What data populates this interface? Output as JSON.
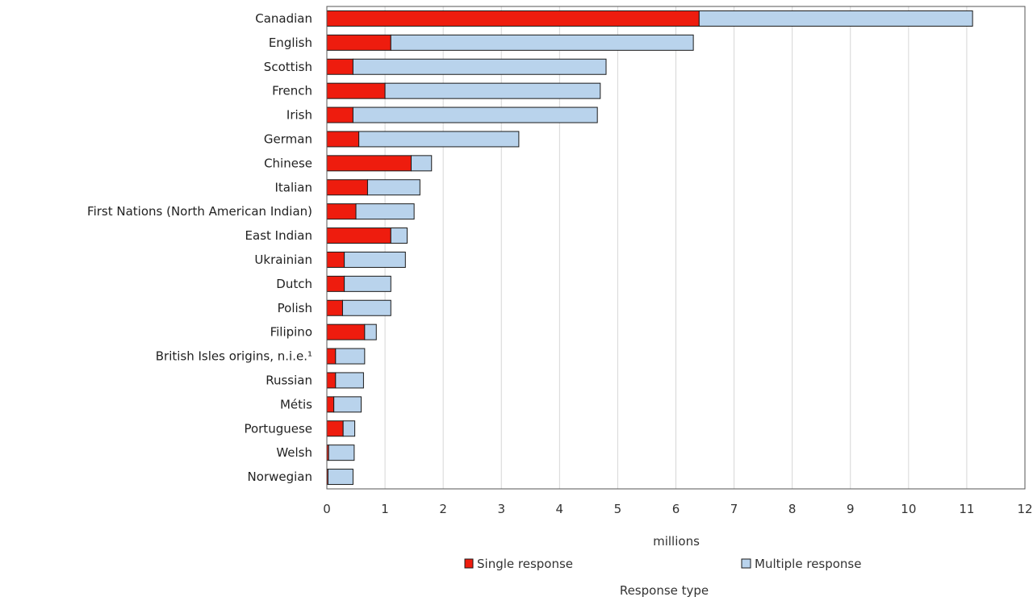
{
  "chart_data": {
    "type": "bar",
    "orientation": "horizontal",
    "stacked": true,
    "categories": [
      "Canadian",
      "English",
      "Scottish",
      "French",
      "Irish",
      "German",
      "Chinese",
      "Italian",
      "First Nations (North American Indian)",
      "East Indian",
      "Ukrainian",
      "Dutch",
      "Polish",
      "Filipino",
      "British Isles origins, n.i.e.¹",
      "Russian",
      "Métis",
      "Portuguese",
      "Welsh",
      "Norwegian"
    ],
    "series": [
      {
        "name": "Single response",
        "color": "#ee1c0e",
        "values": [
          6.4,
          1.1,
          0.45,
          1.0,
          0.45,
          0.55,
          1.45,
          0.7,
          0.5,
          1.1,
          0.3,
          0.3,
          0.27,
          0.65,
          0.15,
          0.15,
          0.12,
          0.28,
          0.03,
          0.02
        ]
      },
      {
        "name": "Multiple response",
        "color": "#b9d3ec",
        "values": [
          4.7,
          5.2,
          4.35,
          3.7,
          4.2,
          2.75,
          0.35,
          0.9,
          1.0,
          0.28,
          1.05,
          0.8,
          0.83,
          0.2,
          0.5,
          0.48,
          0.47,
          0.2,
          0.44,
          0.43
        ]
      }
    ],
    "xlabel": "millions",
    "xlim": [
      0,
      12
    ],
    "xticks": [
      "0",
      "1",
      "2",
      "3",
      "4",
      "5",
      "6",
      "7",
      "8",
      "9",
      "10",
      "11",
      "12"
    ],
    "grid": true,
    "legend": {
      "position": "bottom",
      "title": "Response type"
    }
  }
}
